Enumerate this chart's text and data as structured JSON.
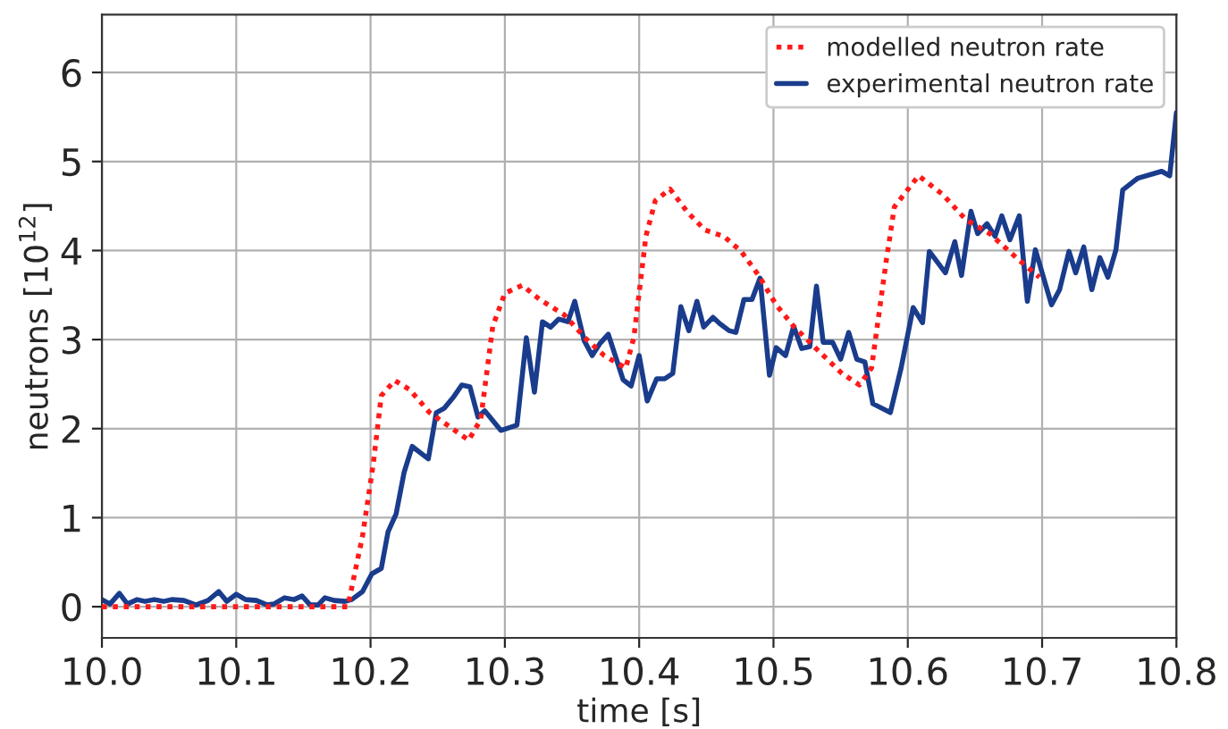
{
  "chart_data": {
    "type": "line",
    "xlabel": "time [s]",
    "ylabel": "neutrons [10$^{12}$]",
    "xlim": [
      10.0,
      10.8
    ],
    "ylim": [
      -0.35,
      6.65
    ],
    "xticks": [
      {
        "value": 10.0,
        "label": "10.0"
      },
      {
        "value": 10.1,
        "label": "10.1"
      },
      {
        "value": 10.2,
        "label": "10.2"
      },
      {
        "value": 10.3,
        "label": "10.3"
      },
      {
        "value": 10.4,
        "label": "10.4"
      },
      {
        "value": 10.5,
        "label": "10.5"
      },
      {
        "value": 10.6,
        "label": "10.6"
      },
      {
        "value": 10.7,
        "label": "10.7"
      },
      {
        "value": 10.8,
        "label": "10.8"
      }
    ],
    "yticks": [
      0,
      1,
      2,
      3,
      4,
      5,
      6
    ],
    "grid": true,
    "legend": "top right",
    "marker": "none",
    "series": [
      {
        "name": "modelled neutron rate",
        "color": "#ff1a1a",
        "line_style": "dotted",
        "x": [
          10.0,
          10.05,
          10.1,
          10.15,
          10.183,
          10.194,
          10.202,
          10.208,
          10.218,
          10.229,
          10.244,
          10.26,
          10.273,
          10.282,
          10.291,
          10.3,
          10.313,
          10.326,
          10.344,
          10.361,
          10.374,
          10.39,
          10.396,
          10.405,
          10.412,
          10.423,
          10.436,
          10.449,
          10.463,
          10.476,
          10.489,
          10.502,
          10.515,
          10.533,
          10.551,
          10.564,
          10.573,
          10.584,
          10.59,
          10.608,
          10.626,
          10.643,
          10.661,
          10.683,
          10.698
        ],
        "values": [
          0,
          0,
          0,
          0,
          0,
          0.79,
          1.6,
          2.37,
          2.54,
          2.44,
          2.18,
          2.01,
          1.87,
          2.1,
          3.15,
          3.52,
          3.61,
          3.45,
          3.28,
          3.0,
          2.82,
          2.68,
          3.02,
          4.16,
          4.56,
          4.69,
          4.43,
          4.23,
          4.16,
          3.99,
          3.72,
          3.39,
          3.15,
          2.88,
          2.62,
          2.49,
          2.68,
          3.89,
          4.49,
          4.84,
          4.63,
          4.35,
          4.19,
          3.89,
          3.7
        ]
      },
      {
        "name": "experimental neutron rate",
        "color": "#1a3c8c",
        "line_style": "solid",
        "x": [
          10.0,
          10.006,
          10.013,
          10.019,
          10.026,
          10.032,
          10.039,
          10.046,
          10.052,
          10.061,
          10.07,
          10.079,
          10.087,
          10.093,
          10.1,
          10.107,
          10.115,
          10.123,
          10.128,
          10.136,
          10.143,
          10.149,
          10.155,
          10.161,
          10.166,
          10.173,
          10.181,
          10.186,
          10.194,
          10.201,
          10.208,
          10.213,
          10.219,
          10.225,
          10.231,
          10.243,
          10.249,
          10.255,
          10.262,
          10.268,
          10.274,
          10.28,
          10.285,
          10.297,
          10.309,
          10.316,
          10.322,
          10.328,
          10.334,
          10.34,
          10.347,
          10.352,
          10.359,
          10.365,
          10.371,
          10.377,
          10.388,
          10.394,
          10.4,
          10.406,
          10.413,
          10.419,
          10.425,
          10.431,
          10.437,
          10.443,
          10.448,
          10.455,
          10.46,
          10.467,
          10.472,
          10.478,
          10.484,
          10.49,
          10.497,
          10.502,
          10.509,
          10.515,
          10.521,
          10.527,
          10.532,
          10.537,
          10.544,
          10.55,
          10.556,
          10.562,
          10.568,
          10.574,
          10.587,
          10.595,
          10.604,
          10.611,
          10.616,
          10.628,
          10.635,
          10.64,
          10.647,
          10.652,
          10.659,
          10.665,
          10.67,
          10.676,
          10.683,
          10.689,
          10.695,
          10.707,
          10.713,
          10.72,
          10.725,
          10.731,
          10.737,
          10.743,
          10.749,
          10.755,
          10.76,
          10.771,
          10.789,
          10.795,
          10.8
        ],
        "values": [
          0.08,
          0.03,
          0.15,
          0.03,
          0.08,
          0.06,
          0.08,
          0.06,
          0.08,
          0.07,
          0.02,
          0.07,
          0.17,
          0.06,
          0.14,
          0.08,
          0.07,
          0.02,
          0.03,
          0.1,
          0.08,
          0.12,
          0.02,
          0.02,
          0.1,
          0.07,
          0.06,
          0.08,
          0.17,
          0.37,
          0.43,
          0.84,
          1.04,
          1.51,
          1.8,
          1.66,
          2.18,
          2.23,
          2.36,
          2.49,
          2.47,
          2.13,
          2.2,
          1.98,
          2.04,
          3.02,
          2.41,
          3.2,
          3.14,
          3.23,
          3.2,
          3.43,
          2.99,
          2.82,
          2.96,
          3.06,
          2.55,
          2.48,
          2.82,
          2.31,
          2.56,
          2.56,
          2.62,
          3.37,
          3.1,
          3.43,
          3.14,
          3.25,
          3.18,
          3.1,
          3.08,
          3.45,
          3.45,
          3.69,
          2.6,
          2.91,
          2.82,
          3.15,
          2.9,
          2.92,
          3.6,
          2.97,
          2.97,
          2.78,
          3.08,
          2.78,
          2.75,
          2.28,
          2.18,
          2.68,
          3.36,
          3.19,
          3.99,
          3.75,
          4.1,
          3.72,
          4.44,
          4.19,
          4.3,
          4.16,
          4.39,
          4.12,
          4.39,
          3.43,
          4.01,
          3.39,
          3.56,
          3.99,
          3.75,
          4.04,
          3.56,
          3.92,
          3.7,
          4.01,
          4.68,
          4.81,
          4.89,
          4.84,
          5.55
        ]
      }
    ]
  }
}
